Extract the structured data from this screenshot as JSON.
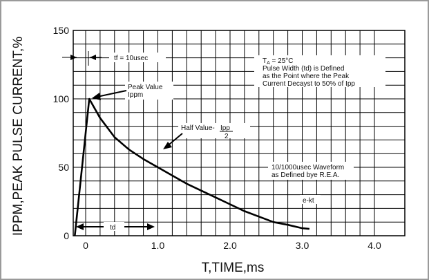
{
  "chart_data": {
    "type": "line",
    "title": "",
    "xlabel": "T,TIME,ms",
    "ylabel": "IPPM,PEAK PULSE CURRENT,%",
    "xlim": [
      -0.15,
      4.0
    ],
    "ylim": [
      0,
      150
    ],
    "x_ticks": [
      "0",
      "1.0",
      "2.0",
      "3.0",
      "4.0"
    ],
    "y_ticks": [
      "0",
      "50",
      "100",
      "150"
    ],
    "grid": true,
    "series": [
      {
        "x": [
          -0.15,
          0.05,
          0.2,
          0.4,
          0.6,
          0.8,
          1.0,
          1.2,
          1.4,
          1.6,
          1.8,
          2.0,
          2.2,
          2.4,
          2.6,
          2.8,
          3.0,
          3.1
        ],
        "values": [
          0,
          100,
          86,
          72,
          63,
          56,
          50,
          44,
          38,
          33,
          28,
          23,
          18,
          14,
          10,
          8,
          5.5,
          5
        ]
      }
    ],
    "annotations": {
      "tf": "tf = 10usec",
      "peak_line1": "Peak Value",
      "peak_line2": "Ippm",
      "half_prefix": "Half Value-",
      "half_num": "Ipp",
      "half_den": "2",
      "cond_line1": "T",
      "cond_sub": "A",
      "cond_line1_rest": " = 25°C",
      "cond_line2": "Pulse Width (td) is Defined",
      "cond_line3": "as the Point where the Peak",
      "cond_line4": "Current Decayst to 50% of Ipp",
      "wave_line1": "10/1000usec Waveform",
      "wave_line2": "as Defined bye R.E.A.",
      "ekt": "e-kt",
      "td": "td"
    }
  }
}
